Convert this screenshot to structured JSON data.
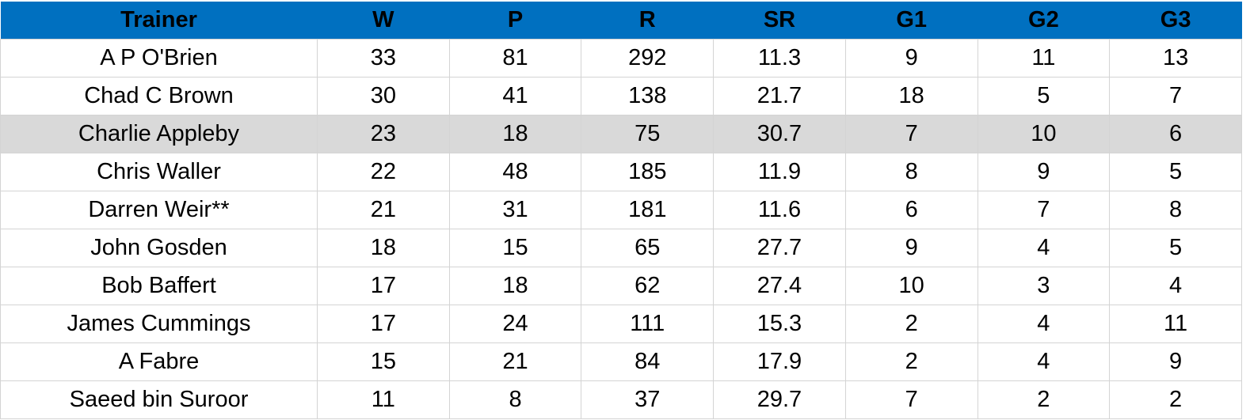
{
  "table": {
    "header": [
      "Trainer",
      "W",
      "P",
      "R",
      "SR",
      "G1",
      "G2",
      "G3"
    ],
    "rows": [
      [
        "A P O'Brien",
        33,
        81,
        292,
        11.3,
        9,
        11,
        13
      ],
      [
        "Chad C Brown",
        30,
        41,
        138,
        21.7,
        18,
        5,
        7
      ],
      [
        "Charlie Appleby",
        23,
        18,
        75,
        30.7,
        7,
        10,
        6
      ],
      [
        "Chris Waller",
        22,
        48,
        185,
        11.9,
        8,
        9,
        5
      ],
      [
        "Darren Weir**",
        21,
        31,
        181,
        11.6,
        6,
        7,
        8
      ],
      [
        "John Gosden",
        18,
        15,
        65,
        27.7,
        9,
        4,
        5
      ],
      [
        "Bob Baffert",
        17,
        18,
        62,
        27.4,
        10,
        3,
        4
      ],
      [
        "James Cummings",
        17,
        24,
        111,
        15.3,
        2,
        4,
        11
      ],
      [
        "A Fabre",
        15,
        21,
        84,
        17.9,
        2,
        4,
        9
      ],
      [
        "Saeed bin Suroor",
        11,
        8,
        37,
        29.7,
        7,
        2,
        2
      ]
    ]
  }
}
